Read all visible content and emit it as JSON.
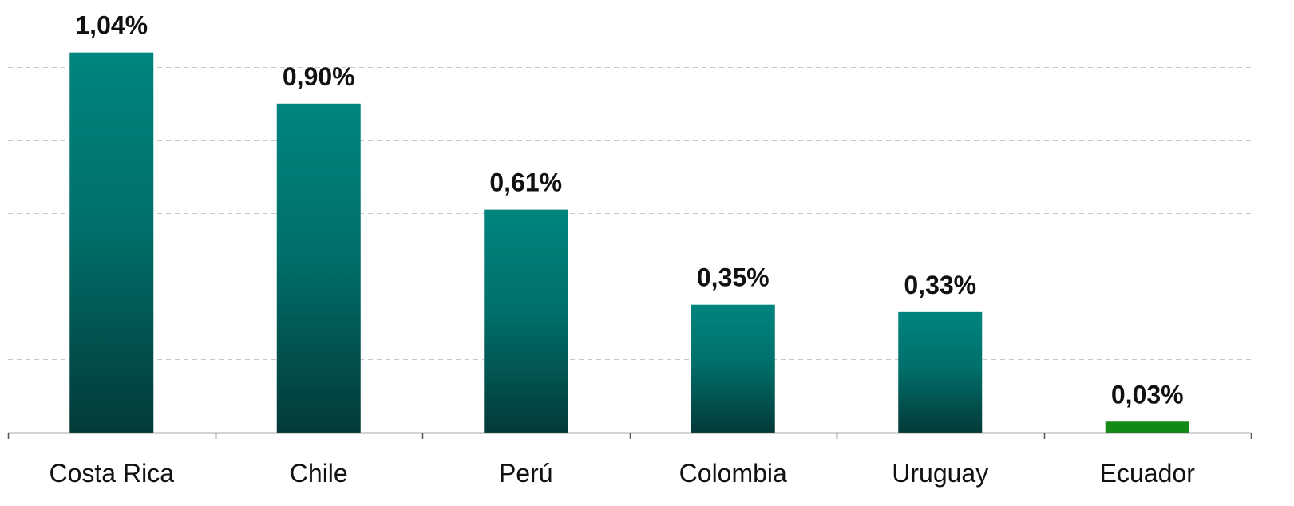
{
  "chart_data": {
    "type": "bar",
    "title": "",
    "xlabel": "",
    "ylabel": "",
    "categories": [
      "Costa Rica",
      "Chile",
      "Perú",
      "Colombia",
      "Uruguay",
      "Ecuador"
    ],
    "values": [
      1.04,
      0.9,
      0.61,
      0.35,
      0.33,
      0.03
    ],
    "value_labels": [
      "1,04%",
      "0,90%",
      "0,61%",
      "0,35%",
      "0,33%",
      "0,03%"
    ],
    "bar_colors": [
      "gradient-teal",
      "gradient-teal",
      "gradient-teal",
      "gradient-teal",
      "gradient-teal",
      "#138a13"
    ],
    "ylim": [
      0,
      1.2
    ],
    "y_unit": "%",
    "grid": true,
    "grid_style": "dashed",
    "y_tick_labels_visible": false,
    "legend": "none"
  },
  "colors": {
    "bar_top": "#00847f",
    "bar_bottom": "#033a38",
    "highlight_bar": "#138a13",
    "grid": "#c8c8c8",
    "axis": "#555555",
    "label_text": "#111111",
    "category_text": "#111111"
  }
}
